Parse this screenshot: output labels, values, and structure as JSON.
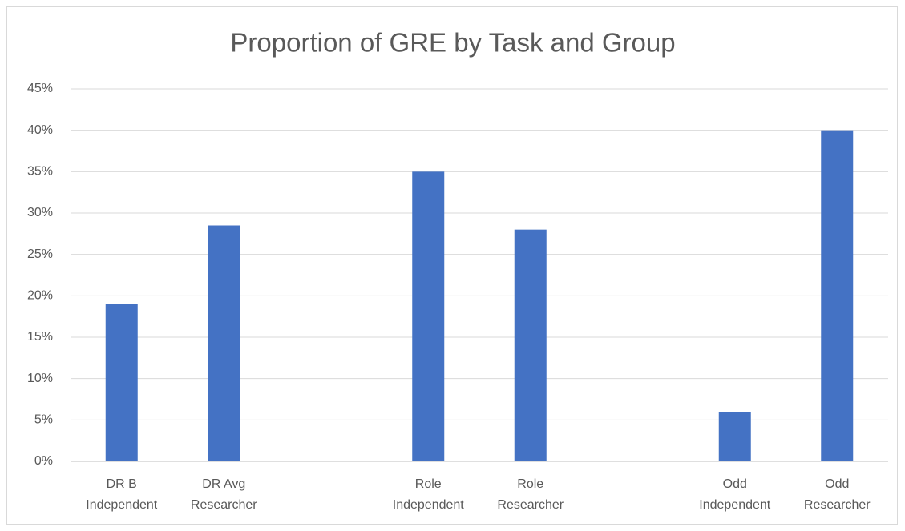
{
  "chart_data": {
    "type": "bar",
    "title": "Proportion of GRE by Task and Group",
    "categories": [
      "DR B Independent",
      "DR Avg Researcher",
      null,
      "Role Independent",
      "Role Researcher",
      null,
      "Odd Independent",
      "Odd Researcher"
    ],
    "values": [
      19,
      28.5,
      null,
      35,
      28,
      null,
      6,
      40
    ],
    "color": "#4472c4",
    "ylim": [
      0,
      45
    ],
    "yticks": [
      {
        "value": 0,
        "label": "0%"
      },
      {
        "value": 5,
        "label": "5%"
      },
      {
        "value": 10,
        "label": "10%"
      },
      {
        "value": 15,
        "label": "15%"
      },
      {
        "value": 20,
        "label": "20%"
      },
      {
        "value": 25,
        "label": "25%"
      },
      {
        "value": 30,
        "label": "30%"
      },
      {
        "value": 35,
        "label": "35%"
      },
      {
        "value": 40,
        "label": "40%"
      },
      {
        "value": 45,
        "label": "45%"
      }
    ],
    "grid": true
  }
}
